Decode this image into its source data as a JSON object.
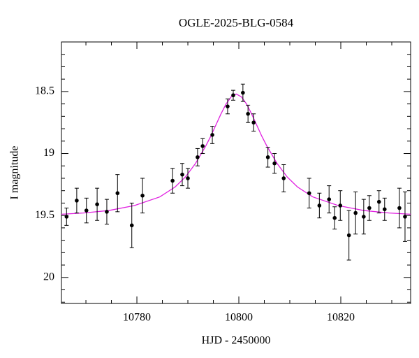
{
  "chart_data": {
    "type": "scatter",
    "title": "OGLE-2025-BLG-0584",
    "x_label": "HJD - 2450000",
    "y_label": "I magnitude",
    "xlim": [
      10765.2,
      10833.7
    ],
    "ylim": [
      20.21,
      18.1
    ],
    "xticks": [
      10780,
      10800,
      10820
    ],
    "xminorticks": [
      10770,
      10775,
      10785,
      10790,
      10795,
      10805,
      10810,
      10815,
      10825,
      10830
    ],
    "yticks": [
      18.5,
      19,
      19.5,
      20
    ],
    "yminorticks": [
      18.2,
      18.3,
      18.4,
      18.6,
      18.7,
      18.8,
      18.9,
      19.1,
      19.2,
      19.3,
      19.4,
      19.6,
      19.7,
      19.8,
      19.9,
      20.1,
      20.2
    ],
    "observations": {
      "color": "#000000",
      "x": [
        10766.2,
        10768.2,
        10770.1,
        10772.2,
        10774.1,
        10776.2,
        10779.0,
        10781.1,
        10787.0,
        10788.9,
        10790.0,
        10791.9,
        10792.9,
        10794.8,
        10797.8,
        10798.9,
        10800.8,
        10801.8,
        10802.9,
        10805.7,
        10807.0,
        10808.8,
        10813.8,
        10815.8,
        10817.7,
        10818.8,
        10819.9,
        10821.6,
        10822.9,
        10824.5,
        10825.6,
        10827.5,
        10828.6,
        10831.5,
        10832.6
      ],
      "values": [
        19.51,
        19.38,
        19.46,
        19.41,
        19.47,
        19.32,
        19.58,
        19.34,
        19.22,
        19.17,
        19.2,
        19.03,
        18.94,
        18.85,
        18.62,
        18.53,
        18.51,
        18.68,
        18.75,
        19.03,
        19.08,
        19.2,
        19.32,
        19.42,
        19.37,
        19.52,
        19.42,
        19.66,
        19.48,
        19.51,
        19.44,
        19.39,
        19.45,
        19.44,
        19.51
      ],
      "errors": [
        0.07,
        0.1,
        0.1,
        0.13,
        0.1,
        0.15,
        0.18,
        0.14,
        0.1,
        0.09,
        0.08,
        0.07,
        0.06,
        0.07,
        0.06,
        0.04,
        0.07,
        0.07,
        0.07,
        0.08,
        0.08,
        0.11,
        0.12,
        0.1,
        0.11,
        0.09,
        0.12,
        0.2,
        0.17,
        0.14,
        0.1,
        0.09,
        0.09,
        0.16,
        0.2
      ]
    },
    "model": {
      "color": "#e020e0",
      "x": [
        10765.2,
        10769.5,
        10774.5,
        10779.5,
        10784.5,
        10787.5,
        10789.5,
        10791.5,
        10793.5,
        10794.5,
        10795.5,
        10796.5,
        10797.5,
        10798.5,
        10799.5,
        10800.5,
        10801.5,
        10802.5,
        10803.5,
        10804.5,
        10805.5,
        10807.5,
        10809.5,
        10811.5,
        10814.5,
        10819.5,
        10824.5,
        10829.5,
        10833.7
      ],
      "values": [
        19.49,
        19.48,
        19.46,
        19.42,
        19.35,
        19.27,
        19.19,
        19.08,
        18.94,
        18.86,
        18.77,
        18.68,
        18.6,
        18.543,
        18.52,
        18.543,
        18.6,
        18.68,
        18.77,
        18.86,
        18.94,
        19.08,
        19.19,
        19.27,
        19.35,
        19.42,
        19.46,
        19.48,
        19.49
      ]
    }
  }
}
